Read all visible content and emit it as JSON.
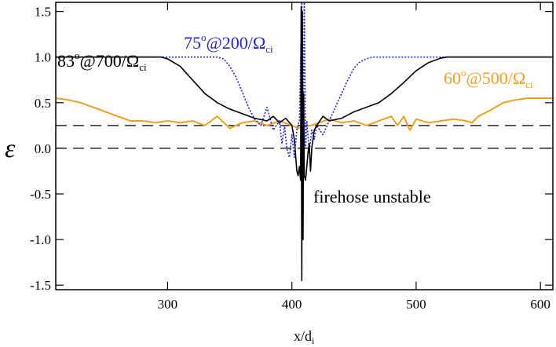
{
  "chart_data": {
    "type": "line",
    "xlabel": "x/d",
    "xlabel_sub": "i",
    "ylabel": "ε",
    "xlim": [
      210,
      610
    ],
    "ylim": [
      -1.55,
      1.6
    ],
    "xticks": [
      300,
      400,
      500,
      600
    ],
    "xtick_labels": [
      "300",
      "400",
      "500",
      "600"
    ],
    "yticks": [
      -1.5,
      -1.0,
      -0.5,
      0.0,
      0.5,
      1.0,
      1.5
    ],
    "ytick_labels": [
      "-1.5",
      "-1.0",
      "-0.5",
      "0.0",
      "0.5",
      "1.0",
      "1.5"
    ],
    "reference_lines": [
      {
        "y": 0.25,
        "style": "dashed",
        "color": "#000000"
      },
      {
        "y": 0.0,
        "style": "dashed",
        "color": "#000000"
      }
    ],
    "series": [
      {
        "key": "black",
        "color": "#000000",
        "style": "solid",
        "x": [
          210,
          295,
          300,
          310,
          320,
          330,
          340,
          350,
          360,
          370,
          380,
          385,
          390,
          395,
          400,
          402,
          404,
          405,
          406,
          407,
          407.5,
          408,
          408.5,
          409,
          409.5,
          410,
          411,
          412,
          413,
          414,
          415,
          416,
          418,
          420,
          425,
          430,
          440,
          450,
          460,
          470,
          480,
          490,
          500,
          510,
          520,
          525,
          530,
          610
        ],
        "y": [
          1.0,
          1.0,
          0.98,
          0.9,
          0.75,
          0.6,
          0.5,
          0.43,
          0.38,
          0.33,
          0.3,
          0.35,
          0.28,
          0.33,
          0.25,
          0.1,
          -0.25,
          -0.3,
          -0.2,
          -0.35,
          1.55,
          -1.45,
          1.5,
          -1.0,
          0.6,
          -0.3,
          -0.35,
          -0.2,
          -0.05,
          0.05,
          -0.25,
          0.0,
          0.2,
          0.25,
          0.35,
          0.3,
          0.33,
          0.4,
          0.45,
          0.5,
          0.6,
          0.72,
          0.85,
          0.94,
          0.99,
          1.0,
          1.0,
          1.0
        ]
      },
      {
        "key": "blue",
        "color": "#2222dd",
        "style": "dotted",
        "x": [
          210,
          340,
          345,
          350,
          355,
          360,
          365,
          370,
          375,
          380,
          385,
          390,
          392,
          394,
          396,
          398,
          400,
          402,
          404,
          406,
          408,
          409,
          410,
          411,
          412,
          414,
          416,
          418,
          420,
          425,
          430,
          435,
          440,
          445,
          450,
          455,
          460,
          465,
          470,
          610
        ],
        "y": [
          1.0,
          1.0,
          0.98,
          0.9,
          0.78,
          0.62,
          0.45,
          0.32,
          0.25,
          0.45,
          0.2,
          0.3,
          0.05,
          0.25,
          0.0,
          -0.1,
          0.15,
          -0.1,
          0.2,
          0.3,
          1.6,
          -0.05,
          1.6,
          0.0,
          0.3,
          -0.05,
          0.2,
          0.1,
          0.25,
          0.15,
          0.3,
          0.45,
          0.6,
          0.75,
          0.88,
          0.95,
          0.98,
          1.0,
          1.0,
          1.0
        ]
      },
      {
        "key": "orange",
        "color": "#f0a020",
        "style": "solid",
        "x": [
          210,
          220,
          230,
          240,
          250,
          260,
          270,
          280,
          290,
          300,
          310,
          320,
          330,
          340,
          350,
          360,
          370,
          380,
          390,
          400,
          405,
          410,
          415,
          420,
          430,
          440,
          450,
          460,
          470,
          480,
          485,
          490,
          495,
          500,
          510,
          520,
          530,
          540,
          545,
          550,
          560,
          570,
          580,
          590,
          600,
          610
        ],
        "y": [
          0.55,
          0.53,
          0.5,
          0.45,
          0.4,
          0.35,
          0.3,
          0.3,
          0.28,
          0.3,
          0.28,
          0.3,
          0.25,
          0.35,
          0.22,
          0.28,
          0.3,
          0.25,
          0.3,
          0.25,
          0.22,
          0.24,
          0.25,
          0.27,
          0.32,
          0.28,
          0.3,
          0.25,
          0.3,
          0.35,
          0.25,
          0.35,
          0.2,
          0.32,
          0.28,
          0.3,
          0.32,
          0.3,
          0.28,
          0.35,
          0.42,
          0.5,
          0.53,
          0.55,
          0.55,
          0.55
        ]
      }
    ],
    "annotations": [
      {
        "key": "black",
        "main": "83",
        "sup": "o",
        "after": "@700/Ω",
        "sub": "ci",
        "color": "#000000"
      },
      {
        "key": "blue",
        "main": "75",
        "sup": "o",
        "after": "@200/Ω",
        "sub": "ci",
        "color": "#2222dd"
      },
      {
        "key": "orange",
        "main": "60",
        "sup": "o",
        "after": "@500/Ω",
        "sub": "ci",
        "color": "#f0a020"
      },
      {
        "key": "firehose",
        "main": "firehose unstable",
        "color": "#000000"
      }
    ]
  }
}
